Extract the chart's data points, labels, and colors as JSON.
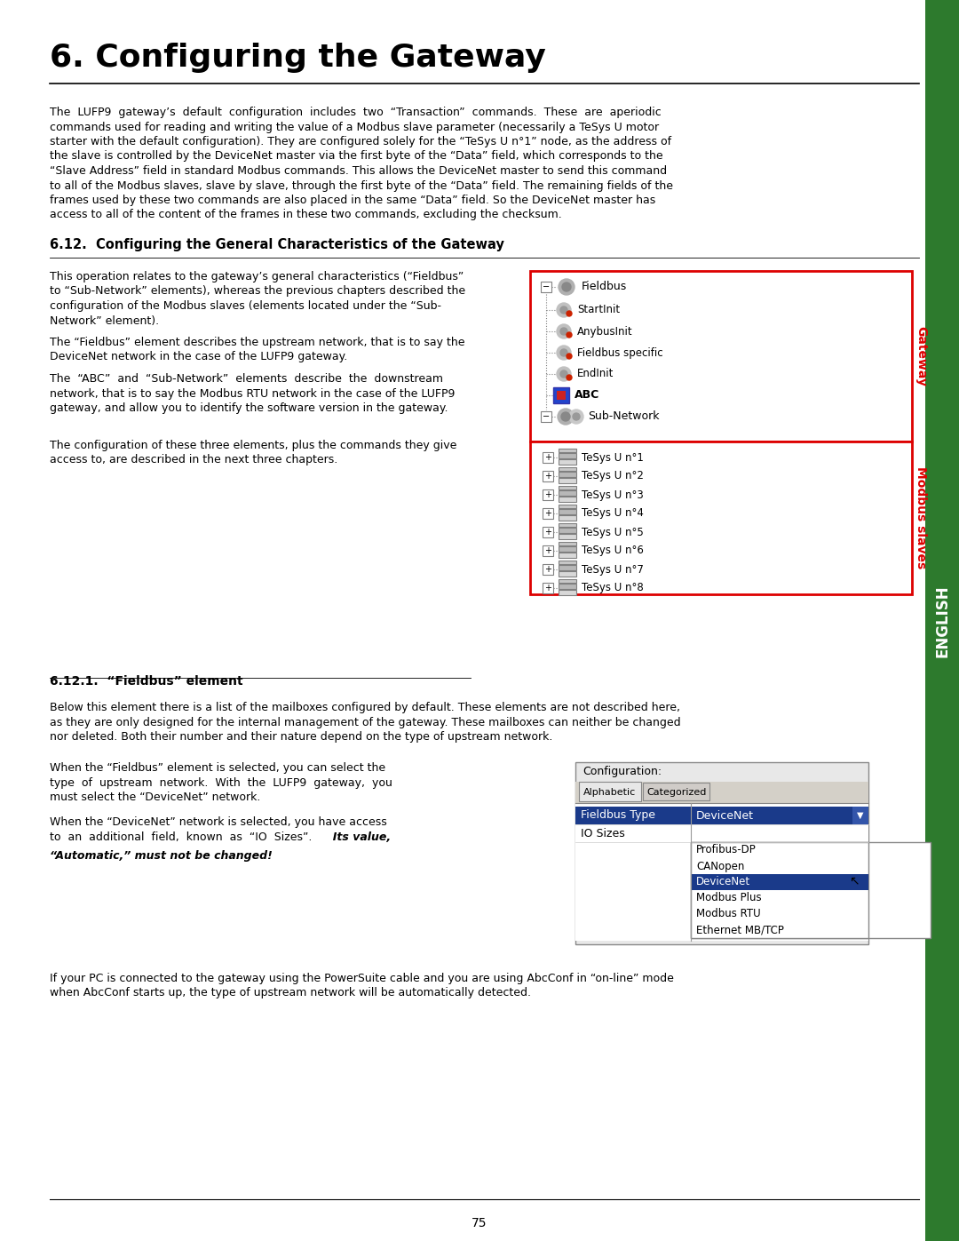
{
  "title": "6. Configuring the Gateway",
  "bg_color": "#ffffff",
  "page_number": "75",
  "body_text_1_lines": [
    "The  LUFP9  gateway’s  default  configuration  includes  two  “Transaction”  commands.  These  are  aperiodic",
    "commands used for reading and writing the value of a Modbus slave parameter (necessarily a TeSys U motor",
    "starter with the default configuration). They are configured solely for the “TeSys U n°1” node, as the address of",
    "the slave is controlled by the DeviceNet master via the first byte of the “Data” field, which corresponds to the",
    "“Slave Address” field in standard Modbus commands. This allows the DeviceNet master to send this command",
    "to all of the Modbus slaves, slave by slave, through the first byte of the “Data” field. The remaining fields of the",
    "frames used by these two commands are also placed in the same “Data” field. So the DeviceNet master has",
    "access to all of the content of the frames in these two commands, excluding the checksum."
  ],
  "section_heading": "6.12.  Configuring the General Characteristics of the Gateway",
  "sec612_col1_lines": [
    "This operation relates to the gateway’s general characteristics (“Fieldbus”",
    "to “Sub-Network” elements), whereas the previous chapters described the",
    "configuration of the Modbus slaves (elements located under the “Sub-",
    "Network” element)."
  ],
  "sec612_col1_lines2": [
    "The “Fieldbus” element describes the upstream network, that is to say the",
    "DeviceNet network in the case of the LUFP9 gateway."
  ],
  "sec612_col1_lines3": [
    "The  “ABC”  and  “Sub-Network”  elements  describe  the  downstream",
    "network, that is to say the Modbus RTU network in the case of the LUFP9",
    "gateway, and allow you to identify the software version in the gateway."
  ],
  "sec612_col1_lines4": [
    "The configuration of these three elements, plus the commands they give",
    "access to, are described in the next three chapters."
  ],
  "section_6121_title": "6.12.1.  “Fieldbus” element",
  "sec6121_text1_lines": [
    "Below this element there is a list of the mailboxes configured by default. These elements are not described here,",
    "as they are only designed for the internal management of the gateway. These mailboxes can neither be changed",
    "nor deleted. Both their number and their nature depend on the type of upstream network."
  ],
  "sec6121_left_lines1": [
    "When the “Fieldbus” element is selected, you can select the",
    "type  of  upstream  network.  With  the  LUFP9  gateway,  you",
    "must select the “DeviceNet” network."
  ],
  "sec6121_left_lines2": [
    "When the “DeviceNet” network is selected, you have access",
    "to  an  additional  field,  known  as  “IO  Sizes”."
  ],
  "sec6121_left_italic": "  Its value,",
  "sec6121_left_bold_italic": "“Automatic,” must not be changed!",
  "sec6121_text4_lines": [
    "If your PC is connected to the gateway using the PowerSuite cable and you are using AbcConf in “on-line” mode",
    "when AbcConf starts up, the type of upstream network will be automatically detected."
  ],
  "config_dropdown_items": [
    "Profibus-DP",
    "CANopen",
    "DeviceNet",
    "Modbus Plus",
    "Modbus RTU",
    "Ethernet MB/TCP"
  ],
  "english_tab_color": "#2d7a2d",
  "red_border_color": "#dd0000",
  "blue_highlight": "#1a3a8a",
  "tree_items_gateway": [
    "Fieldbus",
    "StartInit",
    "AnybusInit",
    "Fieldbus specific",
    "EndInit",
    "ABC",
    "Sub-Network"
  ],
  "tree_items_slaves": [
    "TeSys U n°1",
    "TeSys U n°2",
    "TeSys U n°3",
    "TeSys U n°4",
    "TeSys U n°5",
    "TeSys U n°6",
    "TeSys U n°7",
    "TeSys U n°8"
  ]
}
